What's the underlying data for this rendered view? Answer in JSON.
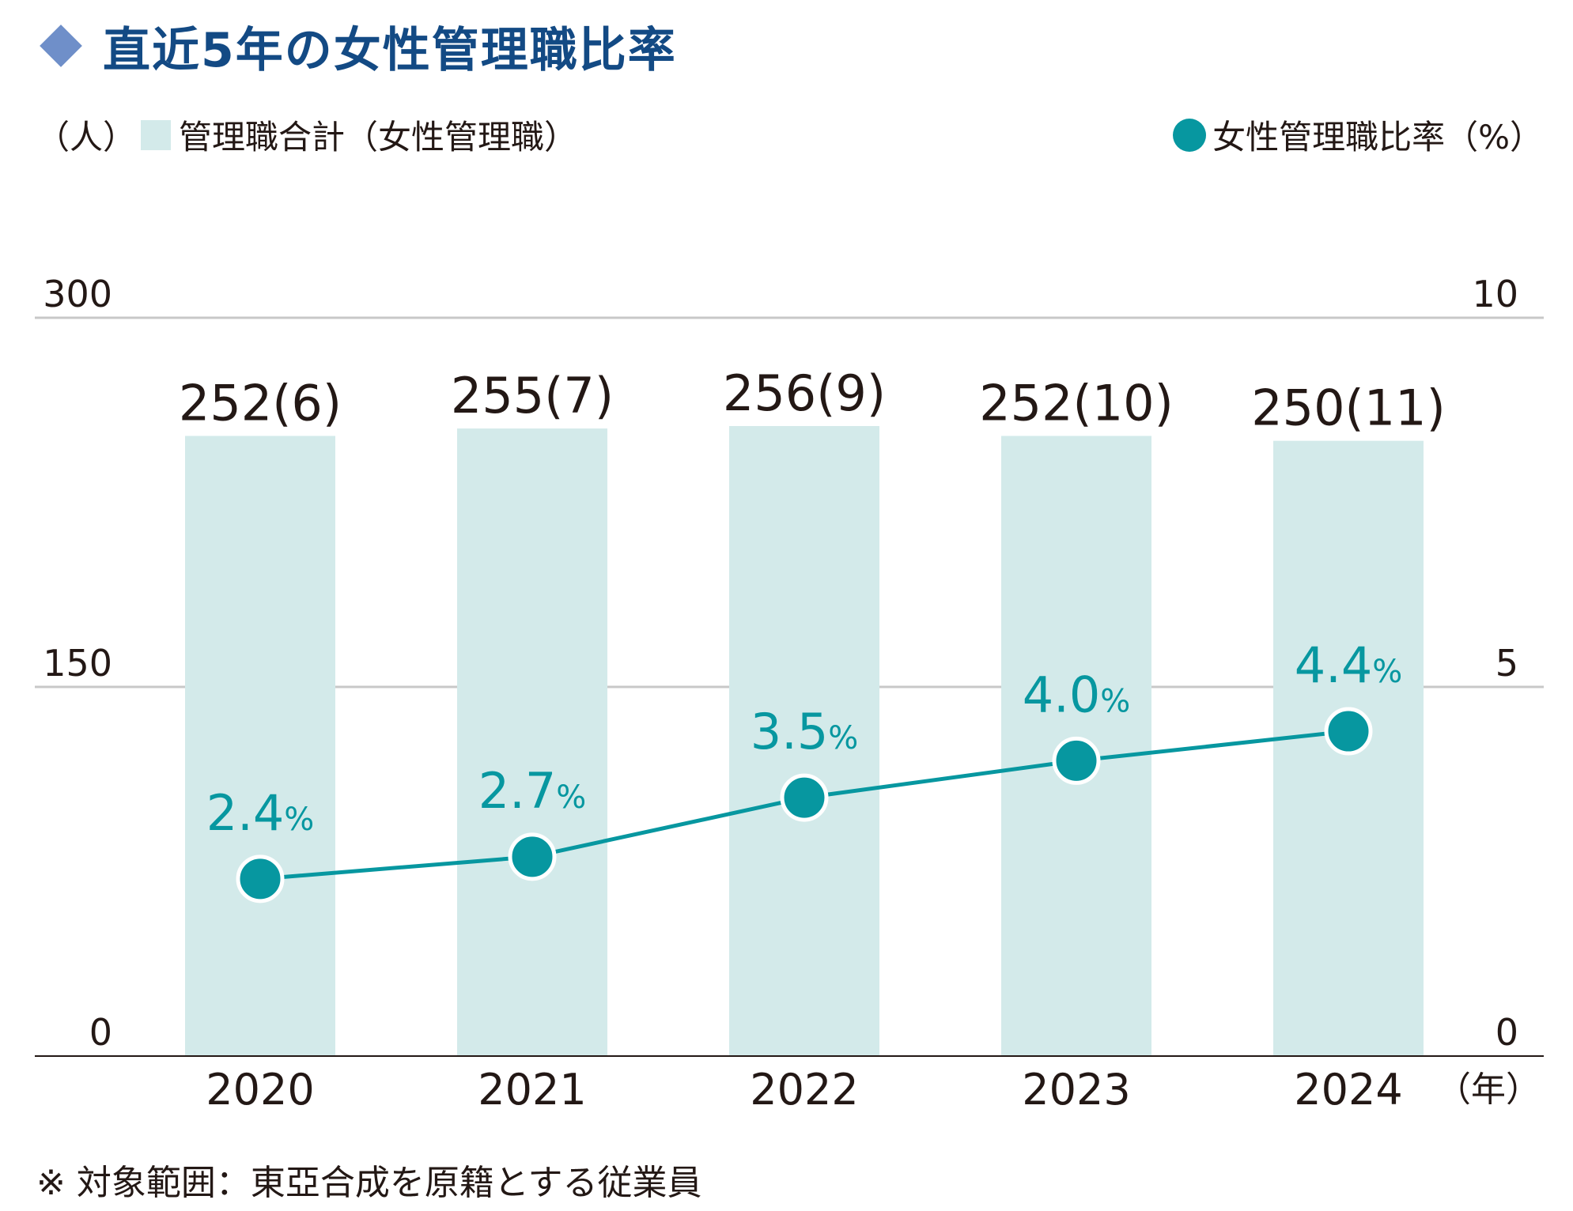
{
  "title": "直近5年の女性管理職比率",
  "legend": {
    "left_unit": "（人）",
    "bar_label": "管理職合計（女性管理職）",
    "line_label": "女性管理職比率（%）"
  },
  "x_unit": "（年）",
  "footnote": "※ 対象範囲：東亞合成を原籍とする従業員",
  "colors": {
    "bar": "#d3eaea",
    "line": "#0797a0",
    "title": "#134a84",
    "icon": "#6f8fc9",
    "grid": "#c8c8c8"
  },
  "chart_data": {
    "type": "bar",
    "categories": [
      "2020",
      "2021",
      "2022",
      "2023",
      "2024"
    ],
    "series": [
      {
        "name": "管理職合計",
        "type": "bar",
        "values": [
          252,
          255,
          256,
          252,
          250
        ],
        "women": [
          6,
          7,
          9,
          10,
          11
        ],
        "labels": [
          "252(6)",
          "255(7)",
          "256(9)",
          "252(10)",
          "250(11)"
        ],
        "axis": "left"
      },
      {
        "name": "女性管理職比率",
        "type": "line",
        "values": [
          2.4,
          2.7,
          3.5,
          4.0,
          4.4
        ],
        "label_numbers": [
          "2.4",
          "2.7",
          "3.5",
          "4.0",
          "4.4"
        ],
        "label_unit": "%",
        "axis": "right"
      }
    ],
    "y_left": {
      "ylim": [
        0,
        300
      ],
      "ticks": [
        "0",
        "150",
        "300"
      ]
    },
    "y_right": {
      "ylim": [
        0,
        10
      ],
      "ticks": [
        "0",
        "5",
        "10"
      ]
    },
    "grid": true
  }
}
